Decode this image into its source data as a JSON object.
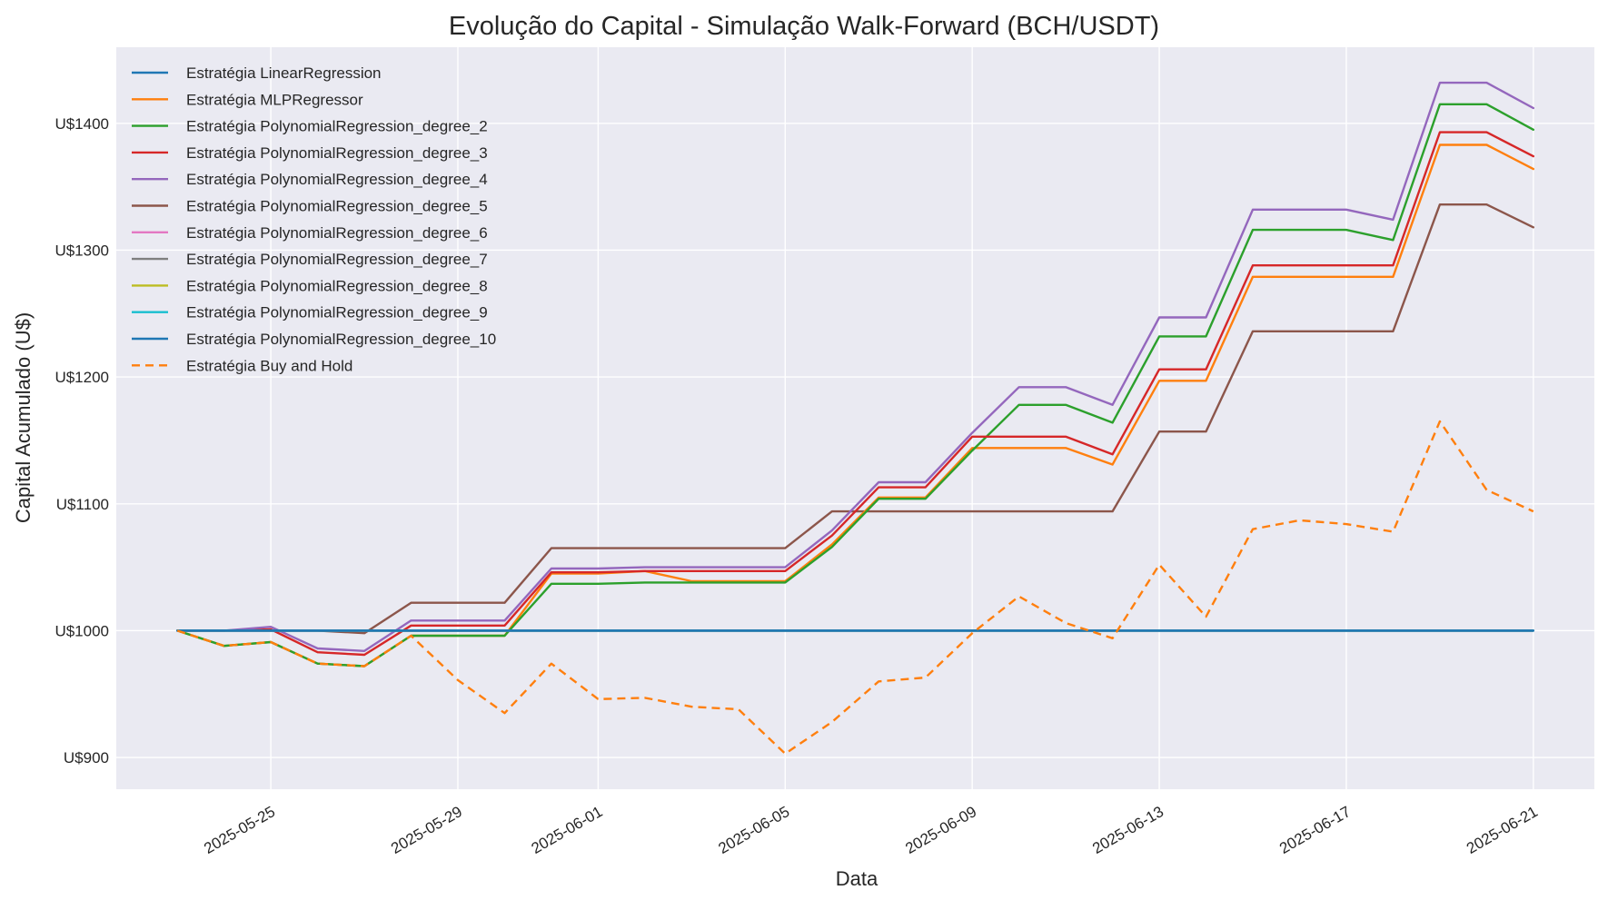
{
  "chart_data": {
    "type": "line",
    "title": "Evolução do Capital - Simulação Walk-Forward (BCH/USDT)",
    "xlabel": "Data",
    "ylabel": "Capital Acumulado (U$)",
    "ylim": [
      875,
      1460
    ],
    "y_ticks": [
      900,
      1000,
      1100,
      1200,
      1300,
      1400
    ],
    "y_tick_prefix": "U$",
    "x_tick_labels": [
      "2025-05-25",
      "2025-05-29",
      "2025-06-01",
      "2025-06-05",
      "2025-06-09",
      "2025-06-13",
      "2025-06-17",
      "2025-06-21"
    ],
    "grid": true,
    "legend_position": "top-left",
    "x": [
      "2025-05-23",
      "2025-05-24",
      "2025-05-25",
      "2025-05-26",
      "2025-05-27",
      "2025-05-28",
      "2025-05-29",
      "2025-05-30",
      "2025-05-31",
      "2025-06-01",
      "2025-06-02",
      "2025-06-03",
      "2025-06-04",
      "2025-06-05",
      "2025-06-06",
      "2025-06-07",
      "2025-06-08",
      "2025-06-09",
      "2025-06-10",
      "2025-06-11",
      "2025-06-12",
      "2025-06-13",
      "2025-06-14",
      "2025-06-15",
      "2025-06-16",
      "2025-06-17",
      "2025-06-18",
      "2025-06-19",
      "2025-06-20",
      "2025-06-21"
    ],
    "series": [
      {
        "name": "Estratégia LinearRegression",
        "color": "#1f77b4",
        "dash": false,
        "values": [
          1000,
          1000,
          1000,
          1000,
          1000,
          1000,
          1000,
          1000,
          1000,
          1000,
          1000,
          1000,
          1000,
          1000,
          1000,
          1000,
          1000,
          1000,
          1000,
          1000,
          1000,
          1000,
          1000,
          1000,
          1000,
          1000,
          1000,
          1000,
          1000,
          1000
        ]
      },
      {
        "name": "Estratégia MLPRegressor",
        "color": "#ff7f0e",
        "dash": false,
        "values": [
          1000,
          988,
          991,
          974,
          972,
          996,
          996,
          996,
          1045,
          1045,
          1047,
          1039,
          1039,
          1039,
          1068,
          1105,
          1105,
          1144,
          1144,
          1144,
          1131,
          1197,
          1197,
          1279,
          1279,
          1279,
          1279,
          1383,
          1383,
          1364
        ]
      },
      {
        "name": "Estratégia PolynomialRegression_degree_2",
        "color": "#2ca02c",
        "dash": false,
        "values": [
          1000,
          988,
          991,
          974,
          972,
          996,
          996,
          996,
          1037,
          1037,
          1038,
          1038,
          1038,
          1038,
          1066,
          1104,
          1104,
          1142,
          1178,
          1178,
          1164,
          1232,
          1232,
          1316,
          1316,
          1316,
          1308,
          1415,
          1415,
          1395
        ]
      },
      {
        "name": "Estratégia PolynomialRegression_degree_3",
        "color": "#d62728",
        "dash": false,
        "values": [
          1000,
          1000,
          1001,
          983,
          981,
          1004,
          1004,
          1004,
          1046,
          1046,
          1047,
          1047,
          1047,
          1047,
          1075,
          1113,
          1113,
          1153,
          1153,
          1153,
          1139,
          1206,
          1206,
          1288,
          1288,
          1288,
          1288,
          1393,
          1393,
          1374
        ]
      },
      {
        "name": "Estratégia PolynomialRegression_degree_4",
        "color": "#9467bd",
        "dash": false,
        "values": [
          1000,
          1000,
          1003,
          986,
          984,
          1008,
          1008,
          1008,
          1049,
          1049,
          1050,
          1050,
          1050,
          1050,
          1079,
          1117,
          1117,
          1156,
          1192,
          1192,
          1178,
          1247,
          1247,
          1332,
          1332,
          1332,
          1324,
          1432,
          1432,
          1412
        ]
      },
      {
        "name": "Estratégia PolynomialRegression_degree_5",
        "color": "#8c564b",
        "dash": false,
        "values": [
          1000,
          1000,
          1000,
          1000,
          998,
          1022,
          1022,
          1022,
          1065,
          1065,
          1065,
          1065,
          1065,
          1065,
          1094,
          1094,
          1094,
          1094,
          1094,
          1094,
          1094,
          1157,
          1157,
          1236,
          1236,
          1236,
          1236,
          1336,
          1336,
          1318
        ]
      },
      {
        "name": "Estratégia PolynomialRegression_degree_6",
        "color": "#e377c2",
        "dash": false,
        "values": [
          1000,
          1000,
          1000,
          1000,
          1000,
          1000,
          1000,
          1000,
          1000,
          1000,
          1000,
          1000,
          1000,
          1000,
          1000,
          1000,
          1000,
          1000,
          1000,
          1000,
          1000,
          1000,
          1000,
          1000,
          1000,
          1000,
          1000,
          1000,
          1000,
          1000
        ]
      },
      {
        "name": "Estratégia PolynomialRegression_degree_7",
        "color": "#7f7f7f",
        "dash": false,
        "values": [
          1000,
          1000,
          1000,
          1000,
          1000,
          1000,
          1000,
          1000,
          1000,
          1000,
          1000,
          1000,
          1000,
          1000,
          1000,
          1000,
          1000,
          1000,
          1000,
          1000,
          1000,
          1000,
          1000,
          1000,
          1000,
          1000,
          1000,
          1000,
          1000,
          1000
        ]
      },
      {
        "name": "Estratégia PolynomialRegression_degree_8",
        "color": "#bcbd22",
        "dash": false,
        "values": [
          1000,
          1000,
          1000,
          1000,
          1000,
          1000,
          1000,
          1000,
          1000,
          1000,
          1000,
          1000,
          1000,
          1000,
          1000,
          1000,
          1000,
          1000,
          1000,
          1000,
          1000,
          1000,
          1000,
          1000,
          1000,
          1000,
          1000,
          1000,
          1000,
          1000
        ]
      },
      {
        "name": "Estratégia PolynomialRegression_degree_9",
        "color": "#17becf",
        "dash": false,
        "values": [
          1000,
          1000,
          1000,
          1000,
          1000,
          1000,
          1000,
          1000,
          1000,
          1000,
          1000,
          1000,
          1000,
          1000,
          1000,
          1000,
          1000,
          1000,
          1000,
          1000,
          1000,
          1000,
          1000,
          1000,
          1000,
          1000,
          1000,
          1000,
          1000,
          1000
        ]
      },
      {
        "name": "Estratégia PolynomialRegression_degree_10",
        "color": "#1f77b4",
        "dash": false,
        "values": [
          1000,
          1000,
          1000,
          1000,
          1000,
          1000,
          1000,
          1000,
          1000,
          1000,
          1000,
          1000,
          1000,
          1000,
          1000,
          1000,
          1000,
          1000,
          1000,
          1000,
          1000,
          1000,
          1000,
          1000,
          1000,
          1000,
          1000,
          1000,
          1000,
          1000
        ]
      },
      {
        "name": "Estratégia Buy and Hold",
        "color": "#ff7f0e",
        "dash": true,
        "values": [
          1000,
          988,
          991,
          974,
          972,
          996,
          961,
          935,
          974,
          946,
          947,
          940,
          938,
          903,
          928,
          960,
          963,
          998,
          1027,
          1006,
          994,
          1052,
          1011,
          1080,
          1087,
          1084,
          1078,
          1165,
          1111,
          1094
        ]
      }
    ]
  }
}
